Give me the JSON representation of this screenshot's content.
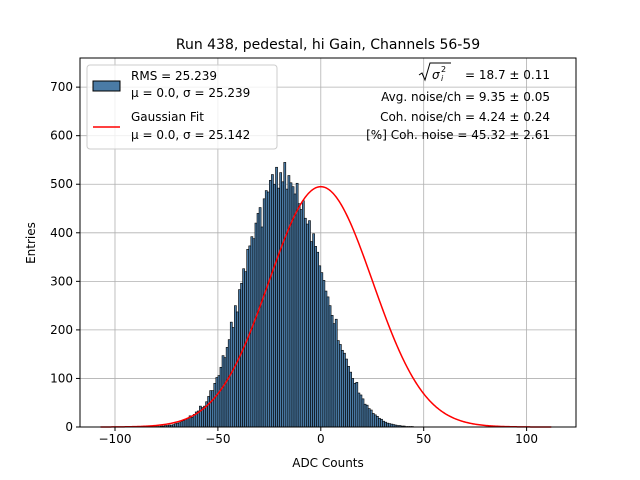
{
  "chart_data": {
    "type": "bar",
    "title": "Run 438, pedestal, hi Gain, Channels 56-59",
    "xlabel": "ADC Counts",
    "ylabel": "Entries",
    "xlim": [
      -117,
      124
    ],
    "ylim": [
      0,
      760
    ],
    "xticks": [
      -100,
      -50,
      0,
      50,
      100
    ],
    "yticks": [
      0,
      100,
      200,
      300,
      400,
      500,
      600,
      700
    ],
    "xtick_labels": [
      "−100",
      "−50",
      "0",
      "50",
      "100"
    ],
    "ytick_labels": [
      "0",
      "100",
      "200",
      "300",
      "400",
      "500",
      "600",
      "700"
    ],
    "grid": true,
    "legend_placement": "top-left",
    "histogram": {
      "bin_width": 1,
      "bin_start": -107,
      "values": [
        0,
        0,
        0,
        0,
        0,
        0,
        0,
        0,
        0,
        0,
        0,
        0,
        0,
        0,
        0,
        0,
        0,
        0,
        0,
        0,
        0,
        0,
        0,
        0,
        0,
        0,
        1,
        1,
        1,
        2,
        2,
        3,
        3,
        4,
        4,
        5,
        7,
        8,
        9,
        11,
        13,
        16,
        18,
        23,
        20,
        26,
        31,
        33,
        43,
        40,
        43,
        52,
        63,
        75,
        75,
        90,
        102,
        106,
        123,
        147,
        143,
        164,
        180,
        216,
        205,
        250,
        237,
        283,
        296,
        326,
        320,
        366,
        373,
        392,
        388,
        420,
        440,
        452,
        412,
        470,
        487,
        484,
        508,
        520,
        500,
        535,
        492,
        524,
        505,
        545,
        490,
        518,
        503,
        495,
        480,
        502,
        460,
        448,
        466,
        430,
        418,
        425,
        382,
        398,
        372,
        360,
        332,
        318,
        302,
        280,
        268,
        250,
        230,
        213,
        222,
        178,
        170,
        158,
        152,
        140,
        125,
        113,
        100,
        90,
        92,
        70,
        66,
        58,
        47,
        45,
        38,
        35,
        28,
        25,
        22,
        18,
        16,
        12,
        10,
        8,
        7,
        6,
        5,
        4,
        3,
        3,
        2,
        2,
        1,
        1,
        1,
        1,
        0,
        0,
        0,
        0,
        0,
        0,
        0,
        0,
        0,
        0,
        0,
        0,
        0,
        0,
        0,
        0,
        0,
        0,
        0,
        0,
        0,
        0,
        0,
        0,
        0,
        0,
        0,
        0,
        0,
        0,
        0,
        0,
        0,
        0,
        0,
        0,
        0,
        0,
        0,
        0,
        0,
        0,
        0,
        0,
        0,
        0,
        0,
        0,
        0,
        0,
        0,
        0,
        0,
        0,
        0,
        0,
        0,
        0,
        0,
        0,
        0,
        0,
        0,
        0,
        0,
        0,
        0,
        0
      ],
      "fill_color": "#4a7ba6",
      "edge_color": "#000000"
    },
    "series": [
      {
        "name": "Gaussian Fit",
        "type": "line",
        "mu": 0.0,
        "sigma": 25.142,
        "amplitude": 495,
        "x_range": [
          -107,
          112
        ],
        "color": "#ff0000"
      }
    ],
    "legend": {
      "entries": [
        {
          "label_line1": "RMS = 25.239",
          "label_line2": "μ = 0.0, σ = 25.239",
          "kind": "patch",
          "color": "#4a7ba6"
        },
        {
          "label_line1": "Gaussian Fit",
          "label_line2": "μ = 0.0, σ = 25.142",
          "kind": "line",
          "color": "#ff0000"
        }
      ]
    },
    "annotations": [
      " = 18.7 ± 0.11",
      "Avg. noise/ch = 9.35 ± 0.05",
      "Coh. noise/ch = 4.24 ± 0.24",
      "[%] Coh. noise = 45.32 ± 2.61"
    ]
  }
}
